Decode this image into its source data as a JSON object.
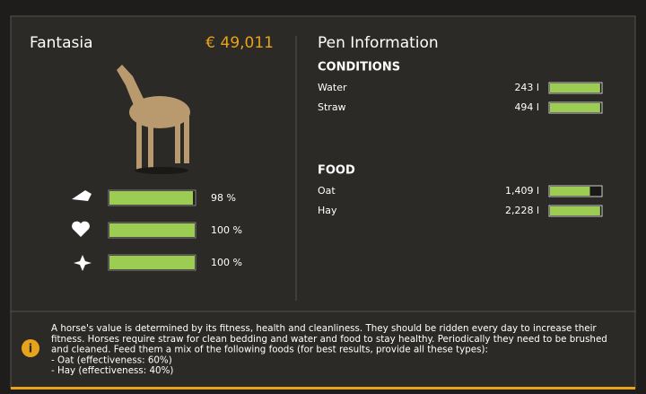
{
  "horse": {
    "name": "Fantasia",
    "price": "€ 49,011",
    "stats": [
      {
        "value": 98,
        "label": "98 %"
      },
      {
        "value": 100,
        "label": "100 %"
      },
      {
        "value": 100,
        "label": "100 %"
      }
    ]
  },
  "pen": {
    "title": "Pen Information",
    "conditions": {
      "heading": "CONDITIONS",
      "items": [
        {
          "name": "Water",
          "amount": "243 l",
          "fill": 98
        },
        {
          "name": "Straw",
          "amount": "494 l",
          "fill": 98
        }
      ]
    },
    "food": {
      "heading": "FOOD",
      "items": [
        {
          "name": "Oat",
          "amount": "1,409 l",
          "fill": 78
        },
        {
          "name": "Hay",
          "amount": "2,228 l",
          "fill": 98
        }
      ]
    }
  },
  "info": {
    "lines": [
      "A horse's value is determined by its fitness, health and cleanliness. They should be ridden every day to increase their",
      "fitness. Horses require straw for clean bedding and water and food to stay healthy. Periodically they need to be brushed",
      "and cleaned. Feed them a mix of the following foods (for best results, provide all these types):",
      "- Oat (effectiveness: 60%)",
      "- Hay (effectiveness: 40%)"
    ]
  }
}
